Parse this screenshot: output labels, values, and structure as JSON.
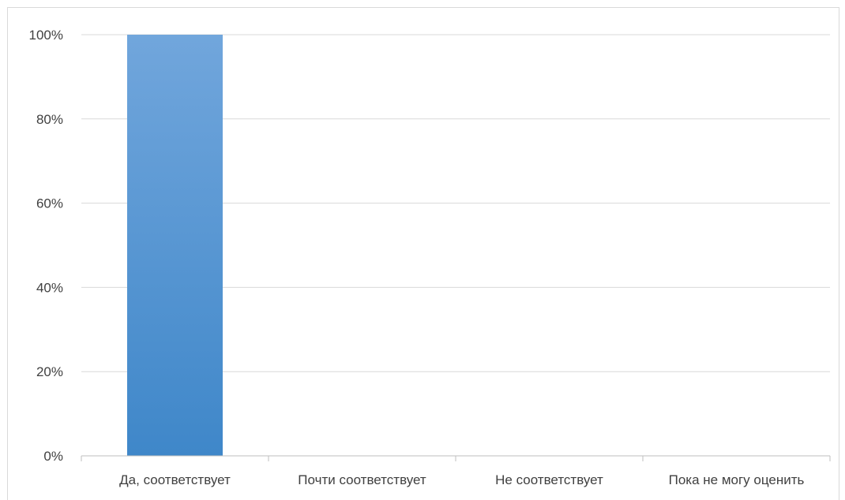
{
  "chart_data": {
    "type": "bar",
    "title": "",
    "xlabel": "",
    "ylabel": "",
    "categories": [
      "Да, соответствует",
      "Почти соответствует",
      "Не соответствует",
      "Пока не могу оценить"
    ],
    "values": [
      100,
      0,
      0,
      0
    ],
    "unit": "%",
    "ylim": [
      0,
      100
    ],
    "yticks": [
      "0%",
      "20%",
      "40%",
      "60%",
      "80%",
      "100%"
    ],
    "grid": true,
    "legend": "none",
    "colors": {
      "bar_top": "#71a6dc",
      "bar_bottom": "#3f87c9",
      "grid": "#d9d9d9",
      "axis": "#bfbfbf",
      "text": "#404040"
    }
  }
}
